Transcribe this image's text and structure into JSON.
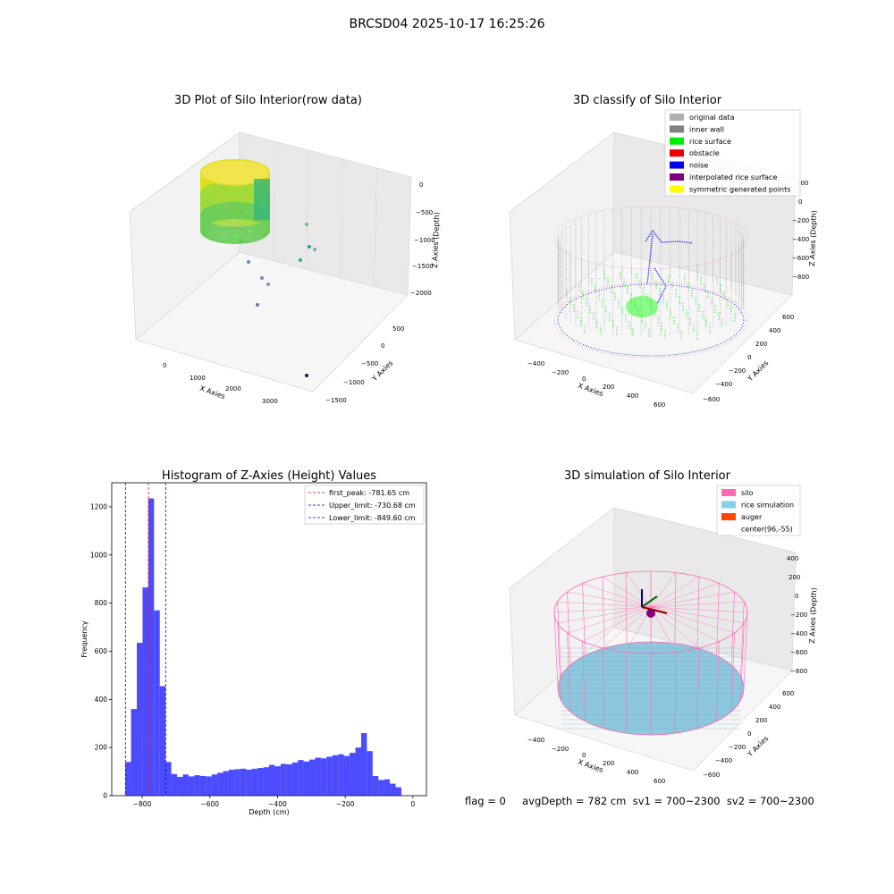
{
  "figure": {
    "suptitle": "BRCSD04 2025-10-17 16:25:26",
    "status_line": "flag = 0     avgDepth = 782 cm  sv1 = 700~2300  sv2 = 700~2300"
  },
  "panels": {
    "raw": {
      "title": "3D Plot of Silo Interior(row data)",
      "xlabel": "X Axies",
      "ylabel": "Y Axies",
      "zlabel": "Z Axies (Depth)",
      "xticks": [
        "0",
        "1000",
        "2000",
        "3000"
      ],
      "yticks": [
        "500",
        "0",
        "−500",
        "−1000",
        "−1500"
      ],
      "zticks": [
        "0",
        "−500",
        "−1000",
        "−1500",
        "−2000"
      ]
    },
    "classify": {
      "title": "3D classify of Silo Interior",
      "xlabel": "X Axies",
      "ylabel": "Y Axies",
      "zlabel": "Z Axies (Depth)",
      "xticks": [
        "−400",
        "−200",
        "0",
        "200",
        "400",
        "600"
      ],
      "yticks": [
        "600",
        "400",
        "200",
        "0",
        "−200",
        "−400",
        "−600"
      ],
      "zticks": [
        "200",
        "0",
        "−200",
        "−400",
        "−600",
        "−800"
      ],
      "legend": [
        {
          "label": "original data",
          "color": "#b0b0b0"
        },
        {
          "label": "inner wall",
          "color": "#808080"
        },
        {
          "label": "rice surface",
          "color": "#00ee00"
        },
        {
          "label": "obstacle",
          "color": "#ee0000"
        },
        {
          "label": "noise",
          "color": "#0000ee"
        },
        {
          "label": "interpolated rice surface",
          "color": "#800080"
        },
        {
          "label": "symmetric generated points",
          "color": "#ffff00"
        }
      ]
    },
    "simulation": {
      "title": "3D simulation of Silo Interior",
      "xlabel": "X Axies",
      "ylabel": "Y Axies",
      "zlabel": "Z Axies (Depth)",
      "xticks": [
        "−400",
        "−200",
        "0",
        "200",
        "400",
        "600"
      ],
      "yticks": [
        "600",
        "400",
        "200",
        "0",
        "−200",
        "−400",
        "−600"
      ],
      "zticks": [
        "400",
        "200",
        "0",
        "−200",
        "−400",
        "−600",
        "−800"
      ],
      "legend": [
        {
          "label": "silo",
          "color": "#ff69b4"
        },
        {
          "label": "rice simulation",
          "color": "#87ceeb"
        },
        {
          "label": "auger",
          "color": "#ff4500"
        },
        {
          "label": "center(96,-55)",
          "color": "#ffffff"
        }
      ]
    }
  },
  "chart_data": {
    "type": "bar",
    "title": "Histogram of Z-Axies (Height) Values",
    "xlabel": "Depth (cm)",
    "ylabel": "Frequency",
    "xlim": [
      -890,
      40
    ],
    "ylim": [
      0,
      1300
    ],
    "xticks": [
      -800,
      -600,
      -400,
      -200,
      0
    ],
    "xtick_labels": [
      "−800",
      "−600",
      "−400",
      "−200",
      "0"
    ],
    "yticks": [
      0,
      200,
      400,
      600,
      800,
      1000,
      1200
    ],
    "bar_color": "#0000ff",
    "bin_start": -850,
    "bin_width": 17,
    "values": [
      140,
      360,
      635,
      865,
      1235,
      770,
      455,
      140,
      90,
      78,
      88,
      80,
      85,
      82,
      80,
      88,
      95,
      102,
      108,
      110,
      112,
      108,
      112,
      115,
      118,
      128,
      122,
      132,
      130,
      138,
      148,
      142,
      150,
      158,
      155,
      162,
      168,
      172,
      165,
      178,
      200,
      260,
      185,
      82,
      65,
      68,
      50,
      35
    ],
    "vlines": [
      {
        "label": "first_peak: -781.65 cm",
        "x": -781.65,
        "color": "#ff0000"
      },
      {
        "label": "Upper_limit: -730.68 cm",
        "x": -730.68,
        "color": "#0000cc"
      },
      {
        "label": "Lower_limit: -849.60 cm",
        "x": -849.6,
        "color": "#0000cc"
      }
    ],
    "legend_position": "top-right"
  }
}
